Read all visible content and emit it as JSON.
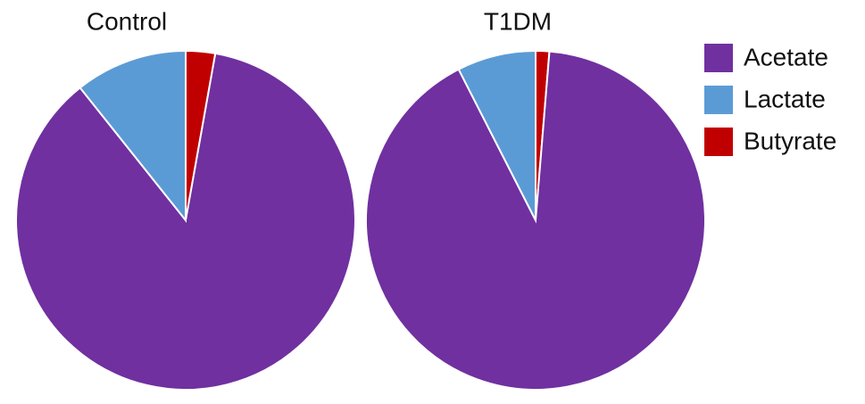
{
  "chart_data": [
    {
      "type": "pie",
      "title": "Control",
      "categories": [
        "Acetate",
        "Lactate",
        "Butyrate"
      ],
      "values": [
        86.5,
        10.7,
        2.8
      ],
      "colors": [
        "#7030a0",
        "#5b9bd5",
        "#c00000"
      ]
    },
    {
      "type": "pie",
      "title": "T1DM",
      "categories": [
        "Acetate",
        "Lactate",
        "Butyrate"
      ],
      "values": [
        91.2,
        7.5,
        1.3
      ],
      "colors": [
        "#7030a0",
        "#5b9bd5",
        "#c00000"
      ]
    }
  ]
}
